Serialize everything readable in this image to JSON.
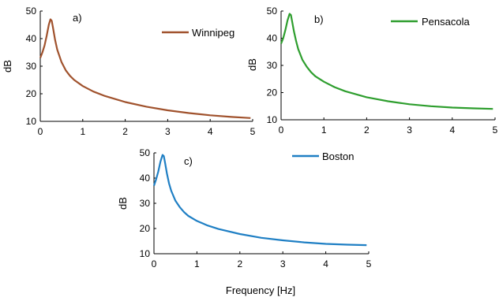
{
  "chart_data": [
    {
      "type": "line",
      "panel_label": "a)",
      "series": [
        {
          "name": "Winnipeg",
          "color": "#a0522d",
          "x": [
            0,
            0.05,
            0.1,
            0.15,
            0.2,
            0.24,
            0.27,
            0.3,
            0.35,
            0.4,
            0.5,
            0.6,
            0.7,
            0.8,
            1.0,
            1.25,
            1.5,
            2.0,
            2.5,
            3.0,
            3.5,
            4.0,
            4.5,
            4.95
          ],
          "y": [
            33,
            35,
            37.5,
            41,
            45,
            47,
            46.5,
            44,
            39.5,
            36,
            31.5,
            28.5,
            26.5,
            25,
            22.8,
            20.8,
            19.3,
            17,
            15.3,
            14,
            13,
            12.2,
            11.6,
            11.2
          ]
        }
      ],
      "ylabel": "dB",
      "xlabel": "",
      "xticks": [
        0,
        1,
        2,
        3,
        4,
        5
      ],
      "yticks": [
        10,
        20,
        30,
        40,
        50
      ],
      "xlim": [
        0,
        5
      ],
      "ylim": [
        10,
        50
      ],
      "legend": "top-right"
    },
    {
      "type": "line",
      "panel_label": "b)",
      "series": [
        {
          "name": "Pensacola",
          "color": "#2e9e2e",
          "x": [
            0,
            0.05,
            0.1,
            0.15,
            0.2,
            0.23,
            0.26,
            0.3,
            0.35,
            0.4,
            0.5,
            0.6,
            0.7,
            0.8,
            1.0,
            1.25,
            1.5,
            2.0,
            2.5,
            3.0,
            3.5,
            4.0,
            4.5,
            4.95
          ],
          "y": [
            38,
            40,
            43,
            46.5,
            49,
            48.5,
            46,
            42.5,
            39,
            36,
            32,
            29.5,
            27.5,
            26,
            24,
            22,
            20.5,
            18.3,
            16.8,
            15.7,
            15,
            14.5,
            14.2,
            14
          ]
        }
      ],
      "ylabel": "dB",
      "xlabel": "",
      "xticks": [
        0,
        1,
        2,
        3,
        4,
        5
      ],
      "yticks": [
        10,
        20,
        30,
        40,
        50
      ],
      "xlim": [
        0,
        5
      ],
      "ylim": [
        10,
        50
      ],
      "legend": "top-right"
    },
    {
      "type": "line",
      "panel_label": "c)",
      "series": [
        {
          "name": "Boston",
          "color": "#1f7fc4",
          "x": [
            0,
            0.05,
            0.1,
            0.15,
            0.2,
            0.23,
            0.26,
            0.3,
            0.35,
            0.4,
            0.5,
            0.6,
            0.7,
            0.8,
            1.0,
            1.25,
            1.5,
            2.0,
            2.5,
            3.0,
            3.5,
            4.0,
            4.5,
            4.95
          ],
          "y": [
            37,
            39.5,
            42.5,
            46.5,
            49.2,
            48.7,
            46,
            42,
            38,
            35,
            31,
            28.5,
            26.5,
            25,
            23,
            21.2,
            19.8,
            17.8,
            16.3,
            15.3,
            14.5,
            13.9,
            13.6,
            13.4
          ]
        }
      ],
      "ylabel": "dB",
      "xlabel": "Frequency [Hz]",
      "xticks": [
        0,
        1,
        2,
        3,
        4,
        5
      ],
      "yticks": [
        10,
        20,
        30,
        40,
        50
      ],
      "xlim": [
        0,
        5
      ],
      "ylim": [
        10,
        50
      ],
      "legend": "top-right"
    }
  ]
}
